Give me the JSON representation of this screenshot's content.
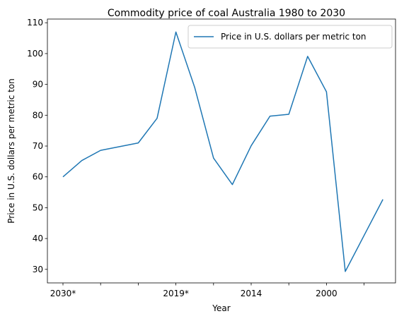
{
  "chart_data": {
    "type": "line",
    "title": "Commodity price of coal Australia 1980 to 2030",
    "xlabel": "Year",
    "ylabel": "Price in U.S. dollars per metric ton",
    "x_tick_labels": [
      "2030*",
      "",
      "",
      "2019*",
      "",
      "2014",
      "",
      "2000",
      ""
    ],
    "y_ticks": [
      30,
      40,
      50,
      60,
      70,
      80,
      90,
      100,
      110
    ],
    "ylim": [
      25.6,
      111.2
    ],
    "grid": false,
    "legend_position": "top-right",
    "series": [
      {
        "name": "Price in U.S. dollars per metric ton",
        "color": "#1f77b4",
        "values": [
          60.0,
          65.3,
          68.6,
          69.8,
          71.0,
          79.0,
          107.0,
          89.0,
          66.1,
          57.5,
          70.1,
          79.7,
          80.3,
          99.1,
          87.6,
          29.3,
          41.0,
          52.7
        ]
      }
    ]
  }
}
